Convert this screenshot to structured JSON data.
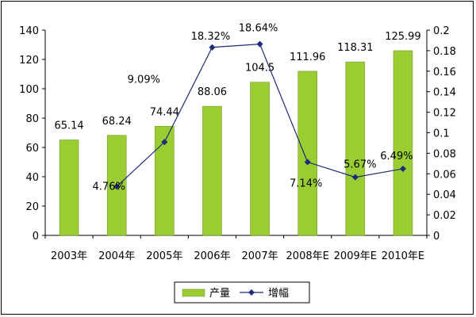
{
  "chart_data": {
    "type": "bar+line",
    "categories": [
      "2003年",
      "2004年",
      "2005年",
      "2006年",
      "2007年",
      "2008年E",
      "2009年E",
      "2010年E"
    ],
    "series": [
      {
        "name": "产量",
        "type": "bar",
        "axis": "left",
        "color": "#9ACD32",
        "values": [
          65.14,
          68.24,
          74.44,
          88.06,
          104.5,
          111.96,
          118.31,
          125.99
        ],
        "labels": [
          "65.14",
          "68.24",
          "74.44",
          "88.06",
          "104.5",
          "111.96",
          "118.31",
          "125.99"
        ]
      },
      {
        "name": "增幅",
        "type": "line",
        "axis": "right",
        "color": "#1F2A7A",
        "values": [
          null,
          0.0476,
          0.0909,
          0.1832,
          0.1864,
          0.0714,
          0.0567,
          0.0649
        ],
        "labels": [
          null,
          "4.76%",
          "9.09%",
          "18.32%",
          "18.64%",
          "7.14%",
          "5.67%",
          "6.49%"
        ]
      }
    ],
    "y_left": {
      "min": 0,
      "max": 140,
      "ticks": [
        "0",
        "20",
        "40",
        "60",
        "80",
        "100",
        "120",
        "140"
      ]
    },
    "y_right": {
      "min": 0,
      "max": 0.2,
      "ticks": [
        "0",
        "0.02",
        "0.04",
        "0.06",
        "0.08",
        "0.1",
        "0.12",
        "0.14",
        "0.16",
        "0.18",
        "0.2"
      ]
    },
    "grid": false,
    "legend_placement": "bottom"
  }
}
